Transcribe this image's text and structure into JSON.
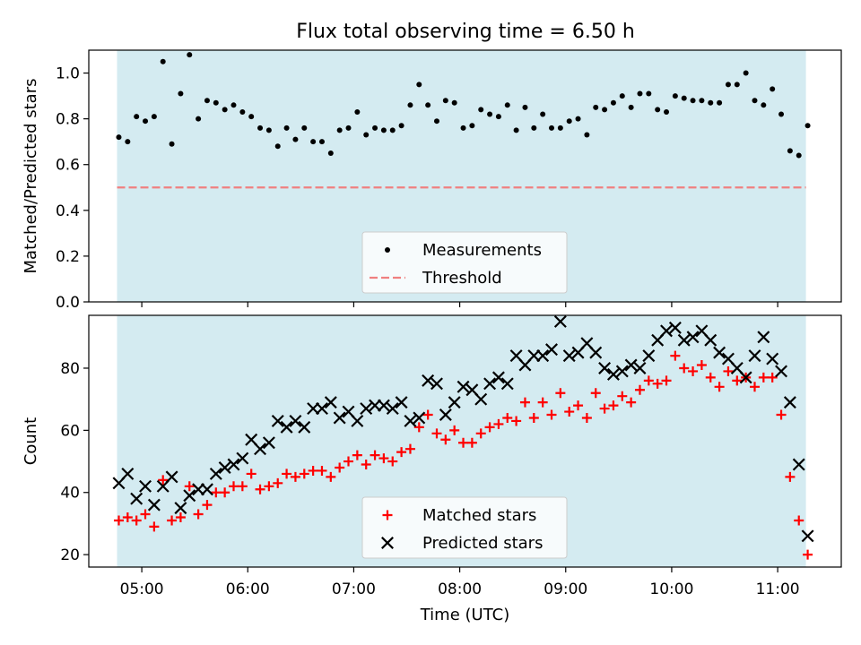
{
  "title": "Flux total observing time = 6.50 h",
  "colors": {
    "shade": "#d4ebf1",
    "threshold": "#f08080",
    "matched": "#ff0000",
    "predicted": "#000000"
  },
  "chart_data": [
    {
      "type": "scatter",
      "ylabel": "Matched/Predicted stars",
      "xlim": [
        "04:30",
        "11:36"
      ],
      "ylim": [
        0,
        1.1
      ],
      "yticks": [
        0.0,
        0.2,
        0.4,
        0.6,
        0.8,
        1.0
      ],
      "ytick_labels": [
        "0.0",
        "0.2",
        "0.4",
        "0.6",
        "0.8",
        "1.0"
      ],
      "shaded_x": [
        "04:46",
        "11:16"
      ],
      "legend_placement": "lower center",
      "series": [
        {
          "name": "Measurements",
          "marker": "dot",
          "points": [
            [
              "04:47",
              0.72
            ],
            [
              "04:52",
              0.7
            ],
            [
              "04:57",
              0.81
            ],
            [
              "05:02",
              0.79
            ],
            [
              "05:07",
              0.81
            ],
            [
              "05:12",
              1.05
            ],
            [
              "05:17",
              0.69
            ],
            [
              "05:22",
              0.91
            ],
            [
              "05:27",
              1.08
            ],
            [
              "05:32",
              0.8
            ],
            [
              "05:37",
              0.88
            ],
            [
              "05:42",
              0.87
            ],
            [
              "05:47",
              0.84
            ],
            [
              "05:52",
              0.86
            ],
            [
              "05:57",
              0.83
            ],
            [
              "06:02",
              0.81
            ],
            [
              "06:07",
              0.76
            ],
            [
              "06:12",
              0.75
            ],
            [
              "06:17",
              0.68
            ],
            [
              "06:22",
              0.76
            ],
            [
              "06:27",
              0.71
            ],
            [
              "06:32",
              0.76
            ],
            [
              "06:37",
              0.7
            ],
            [
              "06:42",
              0.7
            ],
            [
              "06:47",
              0.65
            ],
            [
              "06:52",
              0.75
            ],
            [
              "06:57",
              0.76
            ],
            [
              "07:02",
              0.83
            ],
            [
              "07:07",
              0.73
            ],
            [
              "07:12",
              0.76
            ],
            [
              "07:17",
              0.75
            ],
            [
              "07:22",
              0.75
            ],
            [
              "07:27",
              0.77
            ],
            [
              "07:32",
              0.86
            ],
            [
              "07:37",
              0.95
            ],
            [
              "07:42",
              0.86
            ],
            [
              "07:47",
              0.79
            ],
            [
              "07:52",
              0.88
            ],
            [
              "07:57",
              0.87
            ],
            [
              "08:02",
              0.76
            ],
            [
              "08:07",
              0.77
            ],
            [
              "08:12",
              0.84
            ],
            [
              "08:17",
              0.82
            ],
            [
              "08:22",
              0.81
            ],
            [
              "08:27",
              0.86
            ],
            [
              "08:32",
              0.75
            ],
            [
              "08:37",
              0.85
            ],
            [
              "08:42",
              0.76
            ],
            [
              "08:47",
              0.82
            ],
            [
              "08:52",
              0.76
            ],
            [
              "08:57",
              0.76
            ],
            [
              "09:02",
              0.79
            ],
            [
              "09:07",
              0.8
            ],
            [
              "09:12",
              0.73
            ],
            [
              "09:17",
              0.85
            ],
            [
              "09:22",
              0.84
            ],
            [
              "09:27",
              0.87
            ],
            [
              "09:32",
              0.9
            ],
            [
              "09:37",
              0.85
            ],
            [
              "09:42",
              0.91
            ],
            [
              "09:47",
              0.91
            ],
            [
              "09:52",
              0.84
            ],
            [
              "09:57",
              0.83
            ],
            [
              "10:02",
              0.9
            ],
            [
              "10:07",
              0.89
            ],
            [
              "10:12",
              0.88
            ],
            [
              "10:17",
              0.88
            ],
            [
              "10:22",
              0.87
            ],
            [
              "10:27",
              0.87
            ],
            [
              "10:32",
              0.95
            ],
            [
              "10:37",
              0.95
            ],
            [
              "10:42",
              1.0
            ],
            [
              "10:47",
              0.88
            ],
            [
              "10:52",
              0.86
            ],
            [
              "10:57",
              0.93
            ],
            [
              "11:02",
              0.82
            ],
            [
              "11:07",
              0.66
            ],
            [
              "11:12",
              0.64
            ],
            [
              "11:17",
              0.77
            ]
          ]
        }
      ],
      "lines": [
        {
          "name": "Threshold",
          "style": "dashed",
          "y": 0.5,
          "x": [
            "04:46",
            "11:16"
          ]
        }
      ]
    },
    {
      "type": "scatter",
      "xlabel": "Time (UTC)",
      "ylabel": "Count",
      "xlim": [
        "04:30",
        "11:36"
      ],
      "ylim": [
        16,
        97
      ],
      "xticks": [
        "05:00",
        "06:00",
        "07:00",
        "08:00",
        "09:00",
        "10:00",
        "11:00"
      ],
      "yticks": [
        20,
        40,
        60,
        80
      ],
      "ytick_labels": [
        "20",
        "40",
        "60",
        "80"
      ],
      "shaded_x": [
        "04:46",
        "11:16"
      ],
      "legend_placement": "lower center",
      "series": [
        {
          "name": "Matched stars",
          "marker": "plus",
          "points": [
            [
              "04:47",
              31
            ],
            [
              "04:52",
              32
            ],
            [
              "04:57",
              31
            ],
            [
              "05:02",
              33
            ],
            [
              "05:07",
              29
            ],
            [
              "05:12",
              44
            ],
            [
              "05:17",
              31
            ],
            [
              "05:22",
              32
            ],
            [
              "05:27",
              42
            ],
            [
              "05:32",
              33
            ],
            [
              "05:37",
              36
            ],
            [
              "05:42",
              40
            ],
            [
              "05:47",
              40
            ],
            [
              "05:52",
              42
            ],
            [
              "05:57",
              42
            ],
            [
              "06:02",
              46
            ],
            [
              "06:07",
              41
            ],
            [
              "06:12",
              42
            ],
            [
              "06:17",
              43
            ],
            [
              "06:22",
              46
            ],
            [
              "06:27",
              45
            ],
            [
              "06:32",
              46
            ],
            [
              "06:37",
              47
            ],
            [
              "06:42",
              47
            ],
            [
              "06:47",
              45
            ],
            [
              "06:52",
              48
            ],
            [
              "06:57",
              50
            ],
            [
              "07:02",
              52
            ],
            [
              "07:07",
              49
            ],
            [
              "07:12",
              52
            ],
            [
              "07:17",
              51
            ],
            [
              "07:22",
              50
            ],
            [
              "07:27",
              53
            ],
            [
              "07:32",
              54
            ],
            [
              "07:37",
              61
            ],
            [
              "07:42",
              65
            ],
            [
              "07:47",
              59
            ],
            [
              "07:52",
              57
            ],
            [
              "07:57",
              60
            ],
            [
              "08:02",
              56
            ],
            [
              "08:07",
              56
            ],
            [
              "08:12",
              59
            ],
            [
              "08:17",
              61
            ],
            [
              "08:22",
              62
            ],
            [
              "08:27",
              64
            ],
            [
              "08:32",
              63
            ],
            [
              "08:37",
              69
            ],
            [
              "08:42",
              64
            ],
            [
              "08:47",
              69
            ],
            [
              "08:52",
              65
            ],
            [
              "08:57",
              72
            ],
            [
              "09:02",
              66
            ],
            [
              "09:07",
              68
            ],
            [
              "09:12",
              64
            ],
            [
              "09:17",
              72
            ],
            [
              "09:22",
              67
            ],
            [
              "09:27",
              68
            ],
            [
              "09:32",
              71
            ],
            [
              "09:37",
              69
            ],
            [
              "09:42",
              73
            ],
            [
              "09:47",
              76
            ],
            [
              "09:52",
              75
            ],
            [
              "09:57",
              76
            ],
            [
              "10:02",
              84
            ],
            [
              "10:07",
              80
            ],
            [
              "10:12",
              79
            ],
            [
              "10:17",
              81
            ],
            [
              "10:22",
              77
            ],
            [
              "10:27",
              74
            ],
            [
              "10:32",
              79
            ],
            [
              "10:37",
              76
            ],
            [
              "10:42",
              77
            ],
            [
              "10:47",
              74
            ],
            [
              "10:52",
              77
            ],
            [
              "10:57",
              77
            ],
            [
              "11:02",
              65
            ],
            [
              "11:07",
              45
            ],
            [
              "11:12",
              31
            ],
            [
              "11:17",
              20
            ]
          ]
        },
        {
          "name": "Predicted stars",
          "marker": "x",
          "points": [
            [
              "04:47",
              43
            ],
            [
              "04:52",
              46
            ],
            [
              "04:57",
              38
            ],
            [
              "05:02",
              42
            ],
            [
              "05:07",
              36
            ],
            [
              "05:12",
              42
            ],
            [
              "05:17",
              45
            ],
            [
              "05:22",
              35
            ],
            [
              "05:27",
              39
            ],
            [
              "05:32",
              41
            ],
            [
              "05:37",
              41
            ],
            [
              "05:42",
              46
            ],
            [
              "05:47",
              48
            ],
            [
              "05:52",
              49
            ],
            [
              "05:57",
              51
            ],
            [
              "06:02",
              57
            ],
            [
              "06:07",
              54
            ],
            [
              "06:12",
              56
            ],
            [
              "06:17",
              63
            ],
            [
              "06:22",
              61
            ],
            [
              "06:27",
              63
            ],
            [
              "06:32",
              61
            ],
            [
              "06:37",
              67
            ],
            [
              "06:42",
              67
            ],
            [
              "06:47",
              69
            ],
            [
              "06:52",
              64
            ],
            [
              "06:57",
              66
            ],
            [
              "07:02",
              63
            ],
            [
              "07:07",
              67
            ],
            [
              "07:12",
              68
            ],
            [
              "07:17",
              68
            ],
            [
              "07:22",
              67
            ],
            [
              "07:27",
              69
            ],
            [
              "07:32",
              63
            ],
            [
              "07:37",
              64
            ],
            [
              "07:42",
              76
            ],
            [
              "07:47",
              75
            ],
            [
              "07:52",
              65
            ],
            [
              "07:57",
              69
            ],
            [
              "08:02",
              74
            ],
            [
              "08:07",
              73
            ],
            [
              "08:12",
              70
            ],
            [
              "08:17",
              75
            ],
            [
              "08:22",
              77
            ],
            [
              "08:27",
              75
            ],
            [
              "08:32",
              84
            ],
            [
              "08:37",
              81
            ],
            [
              "08:42",
              84
            ],
            [
              "08:47",
              84
            ],
            [
              "08:52",
              86
            ],
            [
              "08:57",
              95
            ],
            [
              "09:02",
              84
            ],
            [
              "09:07",
              85
            ],
            [
              "09:12",
              88
            ],
            [
              "09:17",
              85
            ],
            [
              "09:22",
              80
            ],
            [
              "09:27",
              78
            ],
            [
              "09:32",
              79
            ],
            [
              "09:37",
              81
            ],
            [
              "09:42",
              80
            ],
            [
              "09:47",
              84
            ],
            [
              "09:52",
              89
            ],
            [
              "09:57",
              92
            ],
            [
              "10:02",
              93
            ],
            [
              "10:07",
              89
            ],
            [
              "10:12",
              90
            ],
            [
              "10:17",
              92
            ],
            [
              "10:22",
              89
            ],
            [
              "10:27",
              85
            ],
            [
              "10:32",
              83
            ],
            [
              "10:37",
              80
            ],
            [
              "10:42",
              77
            ],
            [
              "10:47",
              84
            ],
            [
              "10:52",
              90
            ],
            [
              "10:57",
              83
            ],
            [
              "11:02",
              79
            ],
            [
              "11:07",
              69
            ],
            [
              "11:12",
              49
            ],
            [
              "11:17",
              26
            ]
          ]
        }
      ]
    }
  ]
}
